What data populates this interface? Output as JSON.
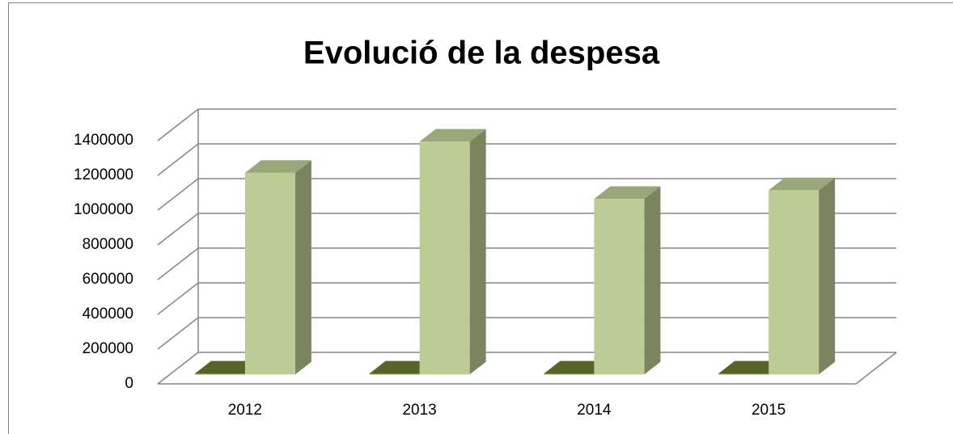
{
  "chart_data": {
    "type": "bar3d",
    "title": "Evolució de la despesa",
    "categories": [
      "2012",
      "2013",
      "2014",
      "2015"
    ],
    "series": [
      {
        "color": "#6b7a30",
        "values": [
          5000,
          5000,
          5000,
          5000
        ]
      },
      {
        "color": "#bccc94",
        "values": [
          1160000,
          1340000,
          1010000,
          1060000
        ]
      }
    ],
    "ylim": [
      0,
      1400000
    ],
    "yticks": [
      0,
      200000,
      400000,
      600000,
      800000,
      1000000,
      1200000,
      1400000
    ],
    "grid": true
  }
}
